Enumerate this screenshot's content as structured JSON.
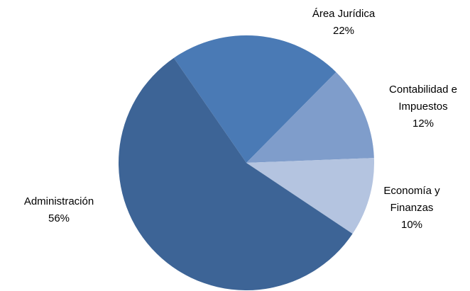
{
  "chart_data": {
    "type": "pie",
    "categories": [
      "Área Jurídica",
      "Contabilidad e Impuestos",
      "Economía y Finanzas",
      "Administración"
    ],
    "values": [
      22,
      12,
      10,
      56
    ],
    "value_labels": [
      "22%",
      "12%",
      "10%",
      "56%"
    ],
    "colors": [
      "#4a7ab5",
      "#7f9dcb",
      "#b4c4e0",
      "#3d6496"
    ]
  }
}
